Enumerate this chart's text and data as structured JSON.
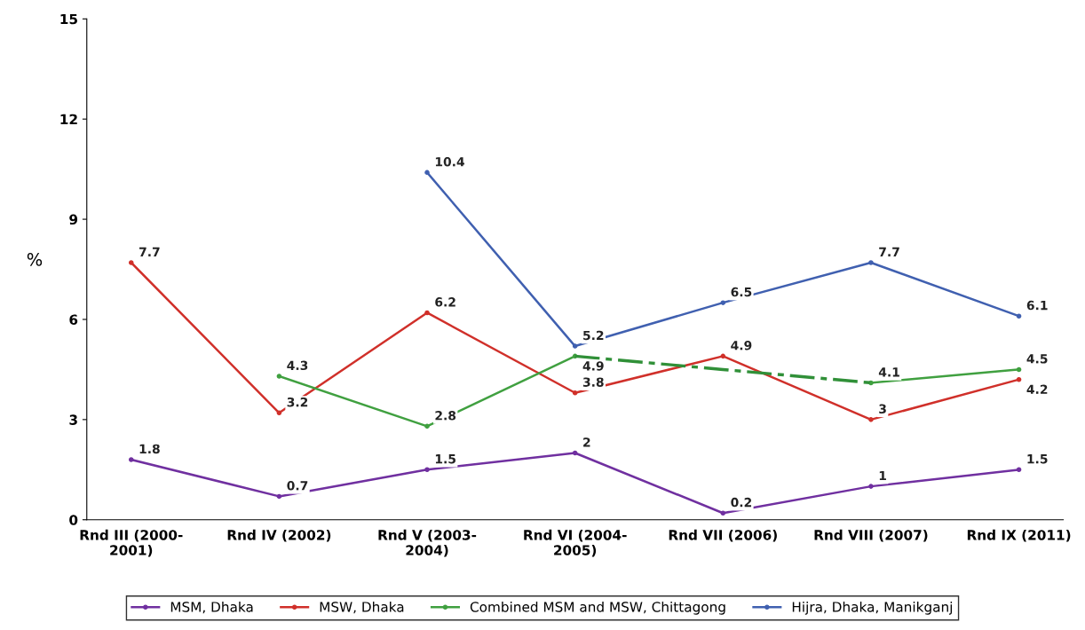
{
  "chart_data": {
    "type": "line",
    "ylabel": "%",
    "categories": [
      "Rnd III (2000-\n2001)",
      "Rnd IV (2002)",
      "Rnd V (2003-\n2004)",
      "Rnd VI (2004-\n2005)",
      "Rnd VII (2006)",
      "Rnd VIII (2007)",
      "Rnd IX (2011)"
    ],
    "series": [
      {
        "name": "MSM, Dhaka",
        "color": "#7030a0",
        "values": [
          1.8,
          0.7,
          1.5,
          2,
          0.2,
          1,
          1.5
        ]
      },
      {
        "name": "MSW, Dhaka",
        "color": "#d0302a",
        "values": [
          7.7,
          3.2,
          6.2,
          3.8,
          4.9,
          3,
          4.2
        ]
      },
      {
        "name": "Combined MSM and MSW, Chittagong",
        "color": "#40a040",
        "values": [
          null,
          4.3,
          2.8,
          4.9,
          null,
          4.1,
          4.5
        ]
      },
      {
        "color": "#309038",
        "line_style": "dashed",
        "marker": "none",
        "values": [
          null,
          null,
          null,
          4.9,
          4.5,
          4.1,
          null
        ],
        "value_labels": [
          null,
          null,
          null,
          null,
          null,
          null,
          null
        ]
      },
      {
        "name": "Hijra, Dhaka, Manikganj",
        "color": "#4060b0",
        "values": [
          null,
          null,
          10.4,
          5.2,
          6.5,
          7.7,
          6.1
        ]
      }
    ],
    "ylim": [
      0,
      15
    ],
    "yticks": [
      0,
      3,
      6,
      9,
      12,
      15
    ],
    "grid": false,
    "legend": "bottom",
    "marker": "circle",
    "line_style": "solid",
    "data_labels": true
  }
}
